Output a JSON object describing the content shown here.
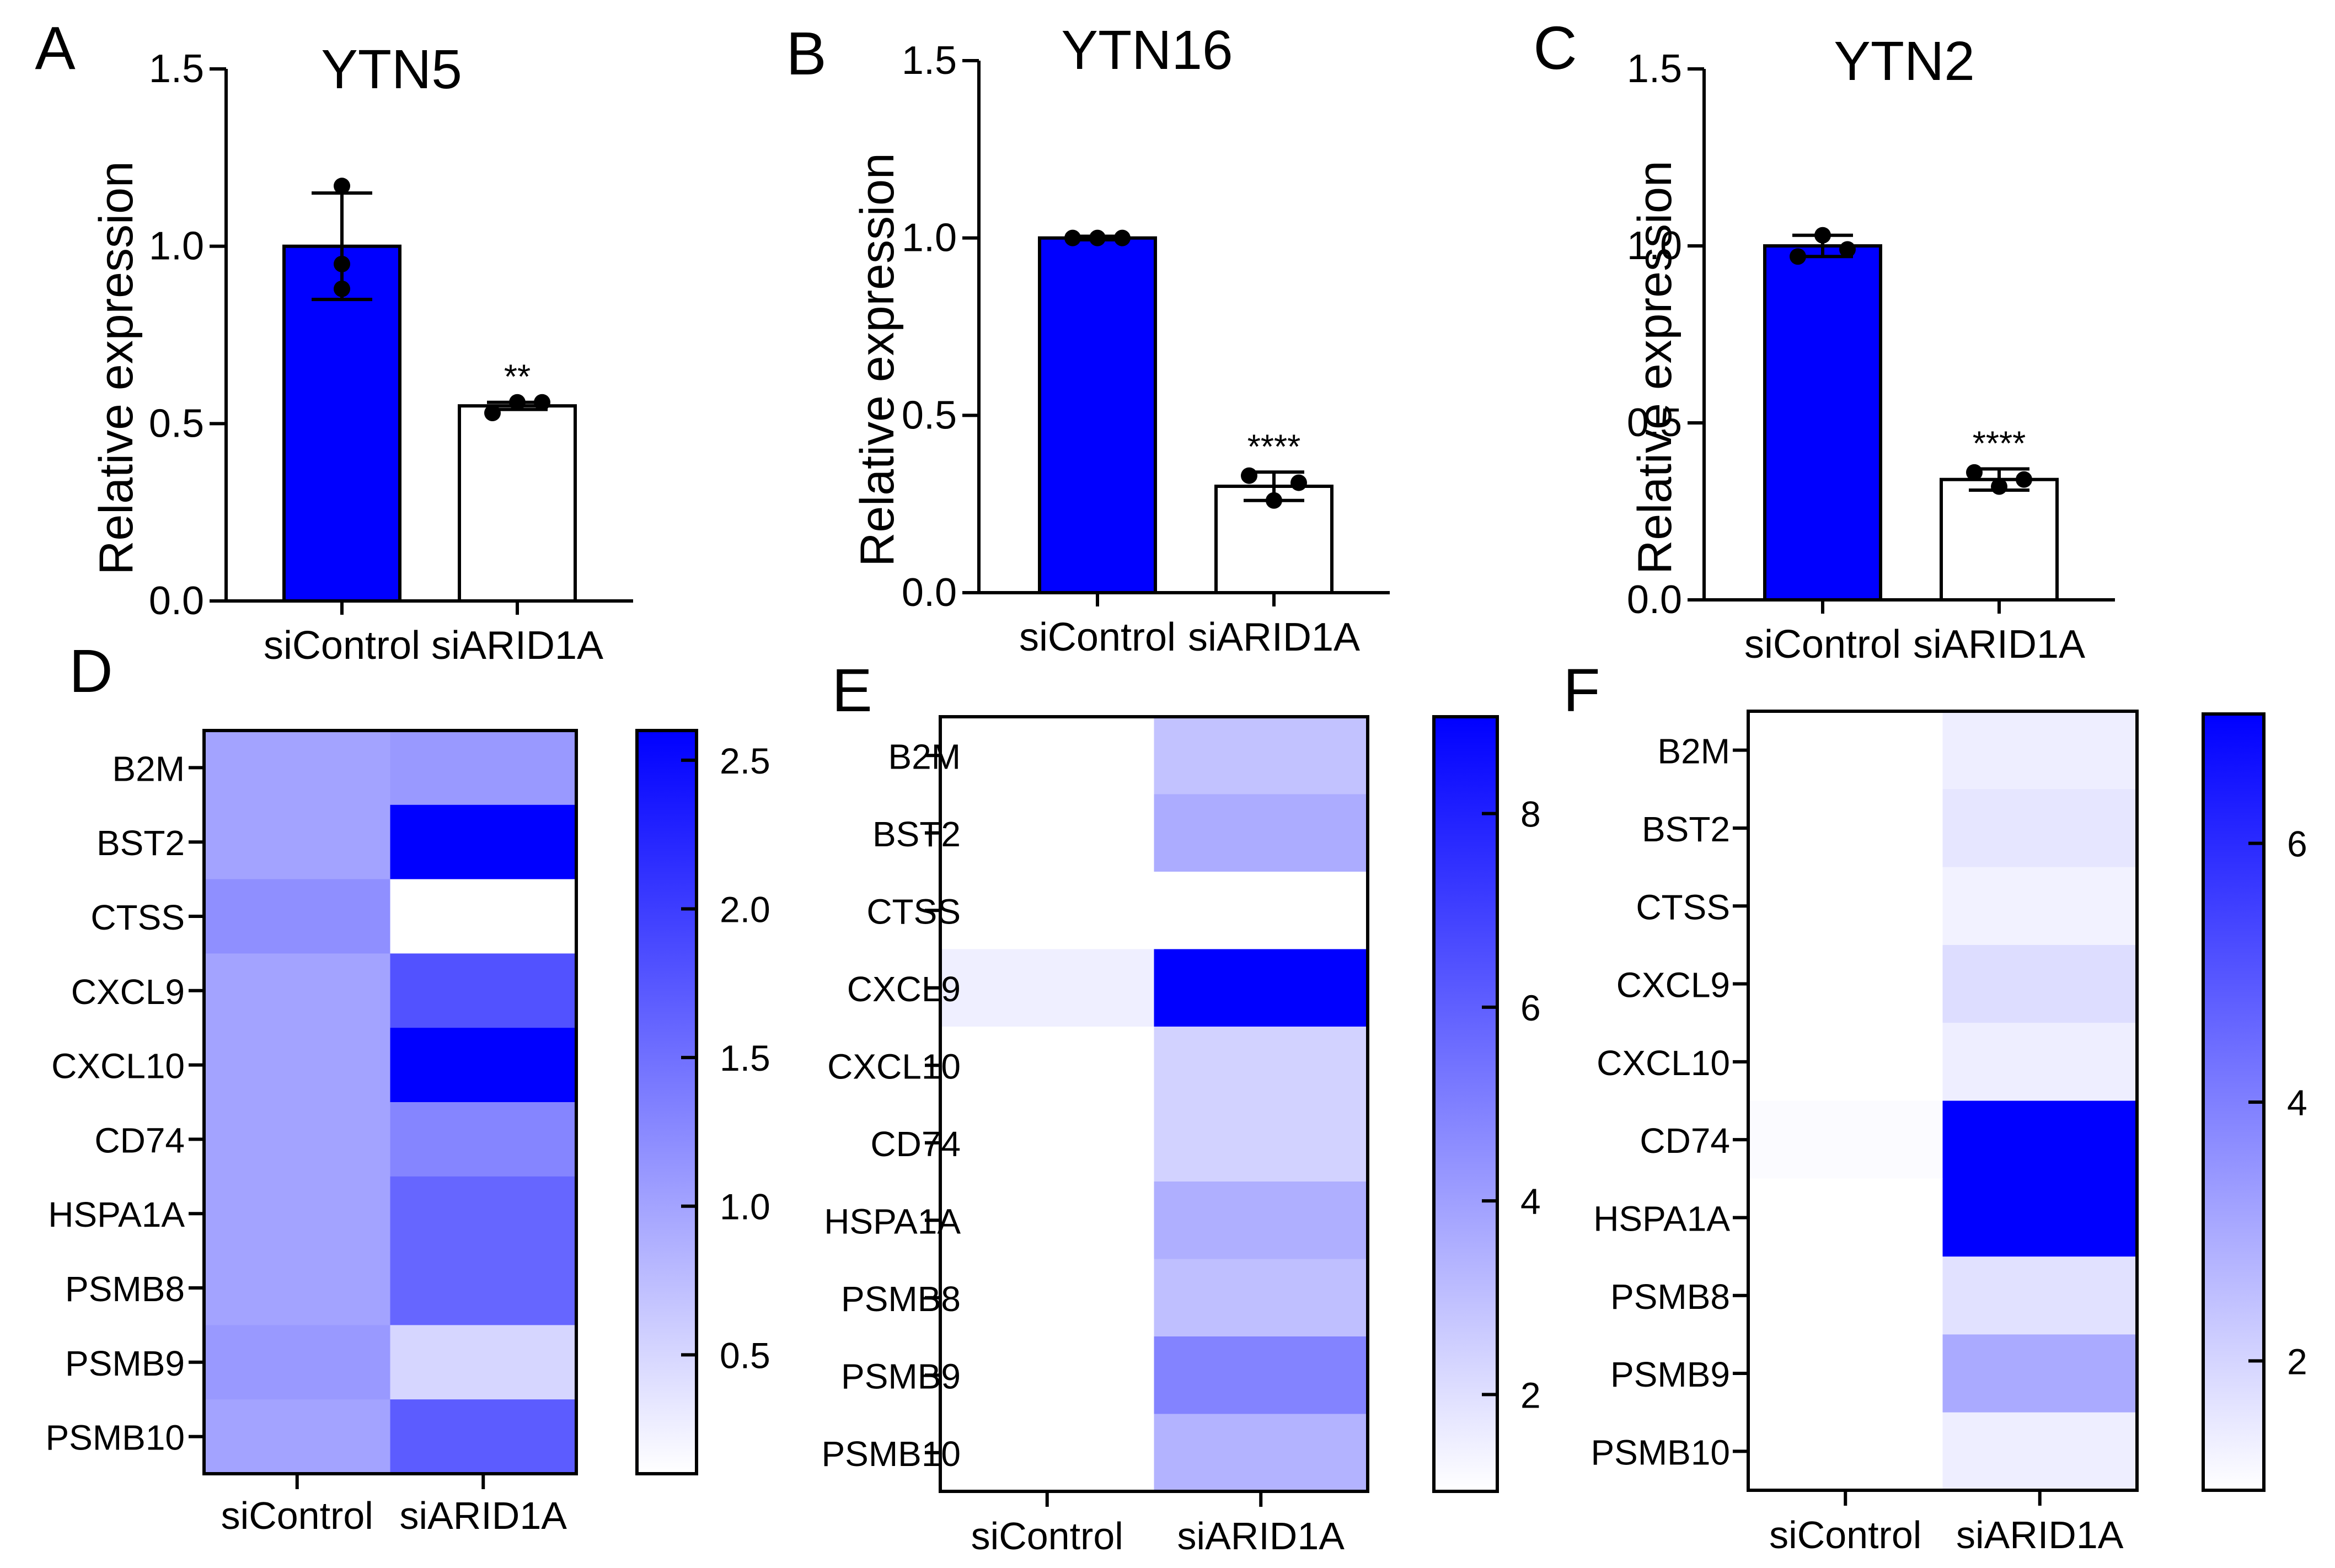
{
  "figure": {
    "heatmap_colors": {
      "low": "#ffffff",
      "high": "#0000ff"
    },
    "bar_colors": {
      "control": "#0000ff",
      "treatment": "#ffffff",
      "stroke": "#000000"
    }
  },
  "chart_data": [
    {
      "type": "bar",
      "panel": "A",
      "title": "YTN5",
      "ylabel": "Relative expression",
      "xlabel": "",
      "ylim": [
        0,
        1.5
      ],
      "yticks": [
        "0.0",
        "0.5",
        "1.0",
        "1.5"
      ],
      "categories": [
        "siControl",
        "siARID1A"
      ],
      "values": [
        1.0,
        0.55
      ],
      "errors": [
        0.15,
        0.01
      ],
      "points": [
        [
          1.17,
          0.95,
          0.88
        ],
        [
          0.53,
          0.56,
          0.56
        ]
      ],
      "significance": [
        "",
        "**"
      ]
    },
    {
      "type": "bar",
      "panel": "B",
      "title": "YTN16",
      "ylabel": "Relative expression",
      "xlabel": "",
      "ylim": [
        0,
        1.5
      ],
      "yticks": [
        "0.0",
        "0.5",
        "1.0",
        "1.5"
      ],
      "categories": [
        "siControl",
        "siARID1A"
      ],
      "values": [
        1.0,
        0.3
      ],
      "errors": [
        0.005,
        0.04
      ],
      "points": [
        [
          1.0,
          1.0,
          1.0
        ],
        [
          0.33,
          0.26,
          0.31
        ]
      ],
      "significance": [
        "",
        "****"
      ]
    },
    {
      "type": "bar",
      "panel": "C",
      "title": "YTN2",
      "ylabel": "Relative expression",
      "xlabel": "",
      "ylim": [
        0,
        1.5
      ],
      "yticks": [
        "0.0",
        "0.5",
        "1.0",
        "1.5"
      ],
      "categories": [
        "siControl",
        "siARID1A"
      ],
      "values": [
        1.0,
        0.34
      ],
      "errors": [
        0.03,
        0.03
      ],
      "points": [
        [
          0.97,
          1.03,
          0.99
        ],
        [
          0.36,
          0.32,
          0.34
        ]
      ],
      "significance": [
        "",
        "****"
      ]
    },
    {
      "type": "heatmap",
      "panel": "D",
      "rows": [
        "B2M",
        "BST2",
        "CTSS",
        "CXCL9",
        "CXCL10",
        "CD74",
        "HSPA1A",
        "PSMB8",
        "PSMB9",
        "PSMB10"
      ],
      "columns": [
        "siControl",
        "siARID1A"
      ],
      "values": [
        [
          1.0,
          1.1
        ],
        [
          1.0,
          2.6
        ],
        [
          1.2,
          0.1
        ],
        [
          1.0,
          1.8
        ],
        [
          1.0,
          2.6
        ],
        [
          1.0,
          1.3
        ],
        [
          1.0,
          1.6
        ],
        [
          1.0,
          1.6
        ],
        [
          1.1,
          0.5
        ],
        [
          1.0,
          1.7
        ]
      ],
      "colorbar": {
        "min": 0.1,
        "max": 2.6,
        "ticks": [
          "0.5",
          "1.0",
          "1.5",
          "2.0",
          "2.5"
        ],
        "tick_values": [
          0.5,
          1.0,
          1.5,
          2.0,
          2.5
        ]
      }
    },
    {
      "type": "heatmap",
      "panel": "E",
      "rows": [
        "B2M",
        "BST2",
        "CTSS",
        "CXCL9",
        "CXCL10",
        "CD74",
        "HSPA1A",
        "PSMB8",
        "PSMB9",
        "PSMB10"
      ],
      "columns": [
        "siControl",
        "siARID1A"
      ],
      "values": [
        [
          1.0,
          2.9
        ],
        [
          1.0,
          3.6
        ],
        [
          1.0,
          0.3
        ],
        [
          1.5,
          9.0
        ],
        [
          1.0,
          2.4
        ],
        [
          1.0,
          2.4
        ],
        [
          1.0,
          3.5
        ],
        [
          1.0,
          3.0
        ],
        [
          1.0,
          4.9
        ],
        [
          1.0,
          3.4
        ]
      ],
      "colorbar": {
        "min": 1.0,
        "max": 9.0,
        "ticks": [
          "2",
          "4",
          "6",
          "8"
        ],
        "tick_values": [
          2,
          4,
          6,
          8
        ]
      }
    },
    {
      "type": "heatmap",
      "panel": "F",
      "rows": [
        "B2M",
        "BST2",
        "CTSS",
        "CXCL9",
        "CXCL10",
        "CD74",
        "HSPA1A",
        "PSMB8",
        "PSMB9",
        "PSMB10"
      ],
      "columns": [
        "siControl",
        "siARID1A"
      ],
      "values": [
        [
          1.0,
          1.4
        ],
        [
          1.0,
          1.6
        ],
        [
          1.0,
          1.3
        ],
        [
          1.0,
          1.8
        ],
        [
          1.0,
          1.4
        ],
        [
          1.1,
          7.0
        ],
        [
          1.0,
          7.0
        ],
        [
          1.0,
          1.7
        ],
        [
          1.0,
          3.0
        ],
        [
          1.0,
          1.4
        ]
      ],
      "colorbar": {
        "min": 1.0,
        "max": 7.0,
        "ticks": [
          "2",
          "4",
          "6"
        ],
        "tick_values": [
          2,
          4,
          6
        ]
      }
    }
  ]
}
